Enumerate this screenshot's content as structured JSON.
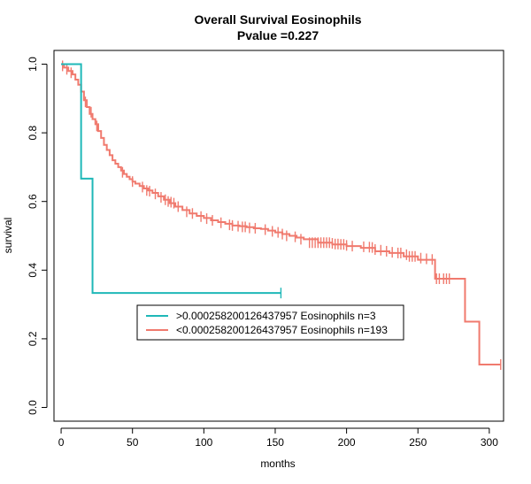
{
  "chart_data": {
    "type": "line",
    "title": "Overall Survival Eosinophils",
    "subtitle": "Pvalue =0.227",
    "xlabel": "months",
    "ylabel": "survival",
    "xlim": [
      -5,
      310
    ],
    "ylim": [
      -0.04,
      1.04
    ],
    "xticks": [
      0,
      50,
      100,
      150,
      200,
      250,
      300
    ],
    "yticks": [
      0.0,
      0.2,
      0.4,
      0.6,
      0.8,
      1.0
    ],
    "xtick_labels": [
      "0",
      "50",
      "100",
      "150",
      "200",
      "250",
      "300"
    ],
    "ytick_labels": [
      "0.0",
      "0.2",
      "0.4",
      "0.6",
      "0.8",
      "1.0"
    ],
    "grid": false,
    "legend_position": "bottom-center",
    "series": [
      {
        "name": ">0.000258200126437957 Eosinophils n=3",
        "color": "#1fb8b8",
        "step_x": [
          0,
          14,
          14,
          22,
          22,
          154
        ],
        "step_y": [
          1.0,
          1.0,
          0.6667,
          0.6667,
          0.3333,
          0.3333
        ],
        "censor_x": [
          154
        ],
        "censor_y": [
          0.3333
        ]
      },
      {
        "name": "<0.000258200126437957 Eosinophils n=193",
        "color": "#f07a6e",
        "step_x": [
          0,
          2,
          5,
          8,
          10,
          12,
          14,
          16,
          18,
          20,
          22,
          24,
          26,
          28,
          30,
          32,
          34,
          36,
          38,
          40,
          42,
          44,
          46,
          48,
          50,
          52,
          55,
          58,
          61,
          64,
          68,
          72,
          76,
          80,
          85,
          90,
          95,
          100,
          105,
          110,
          115,
          120,
          125,
          130,
          135,
          140,
          145,
          150,
          155,
          160,
          165,
          170,
          180,
          190,
          200,
          210,
          220,
          230,
          240,
          250,
          262,
          264,
          283,
          293,
          308
        ],
        "step_y": [
          1.0,
          0.99,
          0.98,
          0.97,
          0.955,
          0.94,
          0.92,
          0.895,
          0.875,
          0.855,
          0.84,
          0.825,
          0.805,
          0.785,
          0.765,
          0.75,
          0.735,
          0.72,
          0.71,
          0.7,
          0.69,
          0.68,
          0.672,
          0.665,
          0.658,
          0.652,
          0.645,
          0.638,
          0.632,
          0.625,
          0.615,
          0.605,
          0.595,
          0.585,
          0.575,
          0.565,
          0.558,
          0.552,
          0.545,
          0.54,
          0.535,
          0.53,
          0.528,
          0.525,
          0.522,
          0.52,
          0.515,
          0.51,
          0.505,
          0.5,
          0.495,
          0.49,
          0.48,
          0.475,
          0.47,
          0.465,
          0.455,
          0.45,
          0.44,
          0.43,
          0.375,
          0.375,
          0.25,
          0.125,
          0.125
        ],
        "censor_x": [
          1,
          4,
          7,
          17,
          21,
          25,
          43,
          50,
          57,
          60,
          62,
          66,
          70,
          73,
          75,
          77,
          79,
          82,
          88,
          92,
          98,
          102,
          106,
          112,
          118,
          120,
          124,
          127,
          129,
          132,
          136,
          143,
          148,
          152,
          155,
          158,
          164,
          168,
          174,
          176,
          178,
          180,
          182,
          184,
          186,
          188,
          190,
          192,
          194,
          196,
          198,
          200,
          204,
          212,
          216,
          218,
          220,
          224,
          228,
          232,
          236,
          238,
          242,
          244,
          246,
          248,
          252,
          256,
          260,
          263,
          265,
          268,
          270,
          272,
          308
        ],
        "censor_y": [
          0.995,
          0.985,
          0.975,
          0.89,
          0.86,
          0.82,
          0.685,
          0.658,
          0.642,
          0.632,
          0.63,
          0.622,
          0.612,
          0.605,
          0.6,
          0.598,
          0.595,
          0.585,
          0.57,
          0.565,
          0.556,
          0.55,
          0.545,
          0.538,
          0.532,
          0.53,
          0.528,
          0.526,
          0.526,
          0.523,
          0.522,
          0.518,
          0.513,
          0.51,
          0.505,
          0.5,
          0.497,
          0.49,
          0.48,
          0.48,
          0.48,
          0.48,
          0.48,
          0.48,
          0.48,
          0.48,
          0.478,
          0.476,
          0.476,
          0.475,
          0.475,
          0.472,
          0.47,
          0.468,
          0.467,
          0.466,
          0.46,
          0.458,
          0.455,
          0.452,
          0.45,
          0.45,
          0.445,
          0.44,
          0.44,
          0.44,
          0.435,
          0.433,
          0.431,
          0.375,
          0.375,
          0.375,
          0.375,
          0.375,
          0.125
        ]
      }
    ]
  }
}
